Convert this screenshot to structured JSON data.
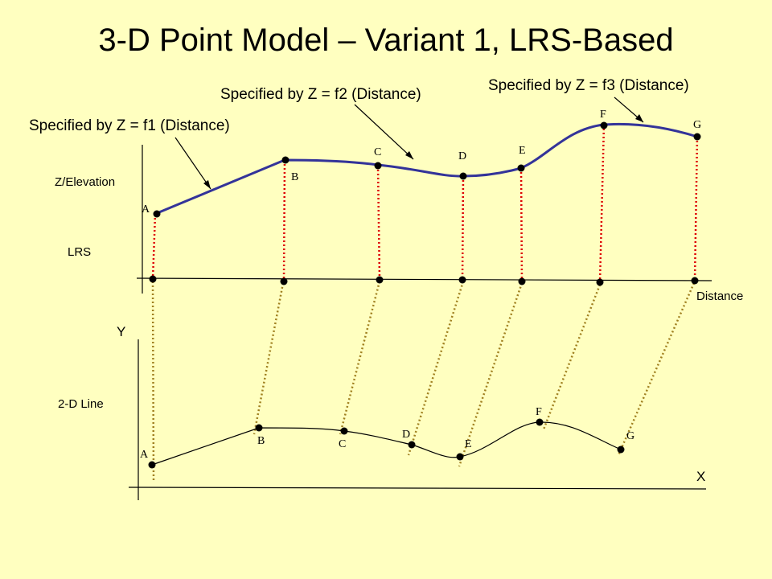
{
  "title": "3-D Point Model – Variant 1, LRS-Based",
  "annotations": {
    "f1": "Specified by Z = f1 (Distance)",
    "f2": "Specified by Z = f2 (Distance)",
    "f3": "Specified by Z = f3 (Distance)"
  },
  "axis_labels": {
    "elevation": "Z/Elevation",
    "lrs": "LRS",
    "distance": "Distance",
    "y": "Y",
    "x": "X",
    "line2d": "2-D Line"
  },
  "points": [
    "A",
    "B",
    "C",
    "D",
    "E",
    "F",
    "G"
  ],
  "colors": {
    "background": "#ffffc0",
    "curve": "#333399",
    "vertical_link": "#dd0000",
    "diagonal_link": "#a08020",
    "point": "#000000"
  }
}
